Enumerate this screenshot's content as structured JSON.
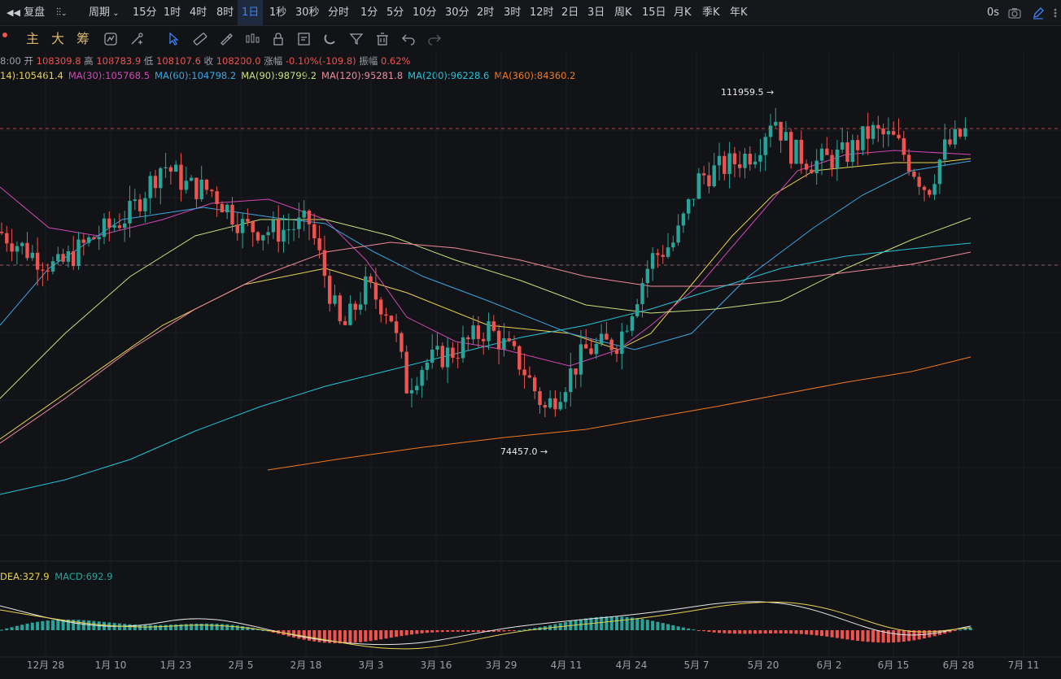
{
  "topbar": {
    "replay_label": "复盘",
    "period_label": "周期",
    "timeframes": [
      "15分",
      "1时",
      "4时",
      "8时",
      "1日",
      "1秒",
      "30秒",
      "分时",
      "1分",
      "5分",
      "10分",
      "30分",
      "2时",
      "3时",
      "12时",
      "2日",
      "3日",
      "周K",
      "15日",
      "月K",
      "季K",
      "年K"
    ],
    "active_timeframe": "1日",
    "latency": "0s"
  },
  "toolbar2": {
    "main_label": "主",
    "big_label": "大",
    "chip_label": "筹"
  },
  "ohlc": {
    "time": "8:00",
    "open_label": "开",
    "open": "108309.8",
    "high_label": "高",
    "high": "108783.9",
    "low_label": "低",
    "low": "108107.6",
    "close_label": "收",
    "close": "108200.0",
    "change_label": "涨幅",
    "change": "-0.10%(-109.8)",
    "amp_label": "振幅",
    "amp": "0.62%"
  },
  "ma_legend": [
    {
      "text": "14):105461.4",
      "color": "#e8d34f"
    },
    {
      "text": "MA(30):105768.5",
      "color": "#d147b5"
    },
    {
      "text": "MA(60):104798.2",
      "color": "#3aa6e0"
    },
    {
      "text": "MA(90):98799.2",
      "color": "#c7e07a"
    },
    {
      "text": "MA(120):95281.8",
      "color": "#f08a9a"
    },
    {
      "text": "MA(200):96228.6",
      "color": "#22c5d8"
    },
    {
      "text": "MA(360):84360.2",
      "color": "#f07a1e"
    }
  ],
  "annotations": {
    "high_mark": "111959.5 →",
    "low_mark": "74457.0 →"
  },
  "macd_legend": {
    "dea": "DEA:327.9",
    "macd": "MACD:692.9"
  },
  "x_axis_labels": [
    "12月 28",
    "1月 10",
    "1月 23",
    "2月 5",
    "2月 18",
    "3月 3",
    "3月 16",
    "3月 29",
    "4月 11",
    "4月 24",
    "5月 7",
    "5月 20",
    "6月 2",
    "6月 15",
    "6月 28",
    "7月 11"
  ],
  "colors": {
    "up": "#26a69a",
    "down": "#ef5350",
    "active_blue": "#3b82f6",
    "gold": "#d6b66c"
  }
}
